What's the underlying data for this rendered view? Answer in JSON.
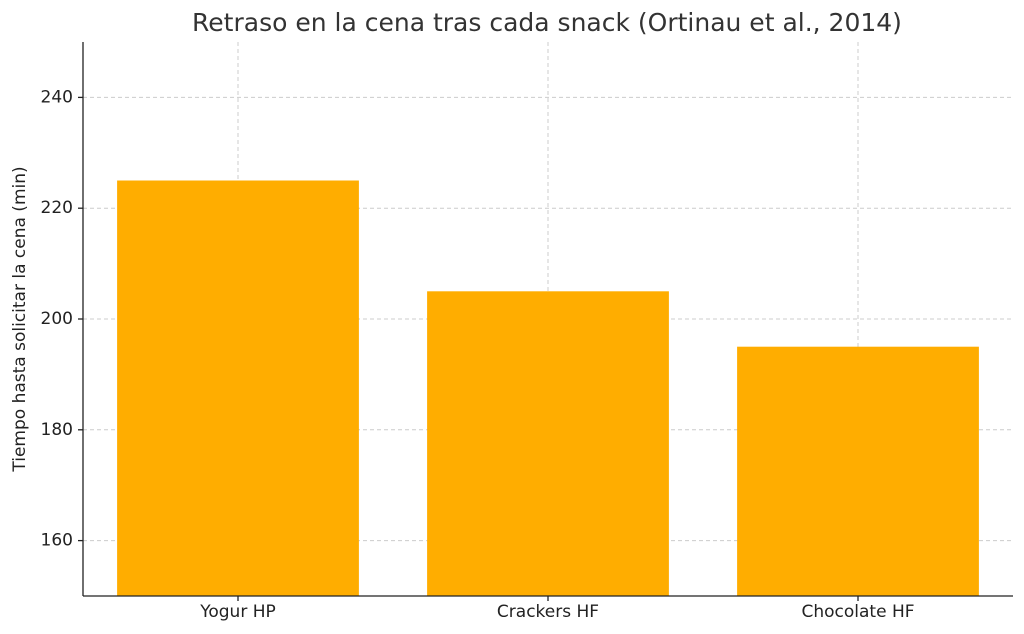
{
  "chart_data": {
    "type": "bar",
    "title": "Retraso en la cena tras cada snack (Ortinau et al., 2014)",
    "y_label": "Tiempo hasta solicitar la cena (min)",
    "categories": [
      "Yogur HP",
      "Crackers HF",
      "Chocolate HF"
    ],
    "values": [
      225,
      205,
      195
    ],
    "color": "#ffad00",
    "ylim": [
      150,
      250
    ],
    "yticks": [
      160,
      180,
      200,
      220,
      240
    ],
    "grid": true
  }
}
